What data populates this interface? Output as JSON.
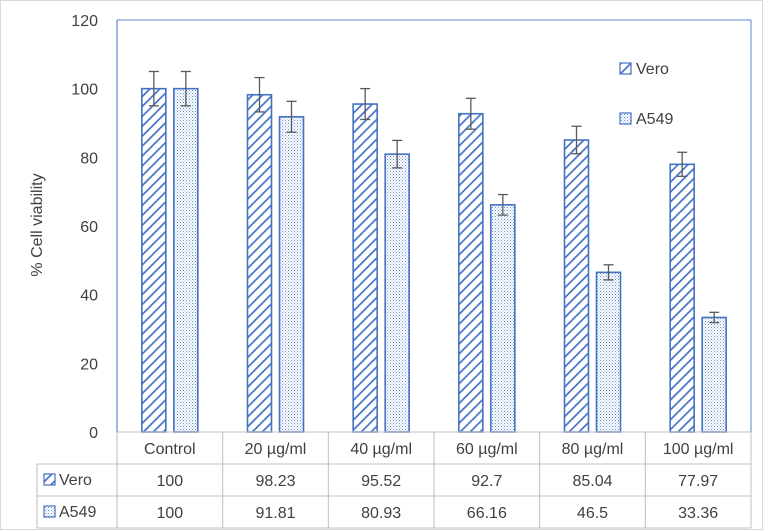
{
  "chart_data": {
    "type": "bar",
    "title": "",
    "xlabel": "",
    "ylabel": "% Cell viability",
    "ylim": [
      0,
      120
    ],
    "yticks": [
      0,
      20,
      40,
      60,
      80,
      100,
      120
    ],
    "grid": false,
    "legend": {
      "position": "right",
      "entries": [
        "Vero",
        "A549"
      ]
    },
    "data_table": true,
    "categories": [
      "Control",
      "20 µg/ml",
      "40 µg/ml",
      "60 µg/ml",
      "80 µg/ml",
      "100 µg/ml"
    ],
    "series": [
      {
        "name": "Vero",
        "pattern": "diagonal-stripes",
        "color": "#4472C4",
        "values": [
          100,
          98.23,
          95.52,
          92.7,
          85.04,
          77.97
        ],
        "labels": [
          "100",
          "98.23",
          "95.52",
          "92.7",
          "85.04",
          "77.97"
        ],
        "errors": [
          5,
          5,
          4.5,
          4.5,
          4,
          3.5
        ]
      },
      {
        "name": "A549",
        "pattern": "dotted",
        "color": "#4472C4",
        "values": [
          100,
          91.81,
          80.93,
          66.16,
          46.5,
          33.36
        ],
        "labels": [
          "100",
          "91.81",
          "80.93",
          "66.16",
          "46.5",
          "33.36"
        ],
        "errors": [
          5,
          4.5,
          4,
          3,
          2.2,
          1.5
        ]
      }
    ]
  }
}
